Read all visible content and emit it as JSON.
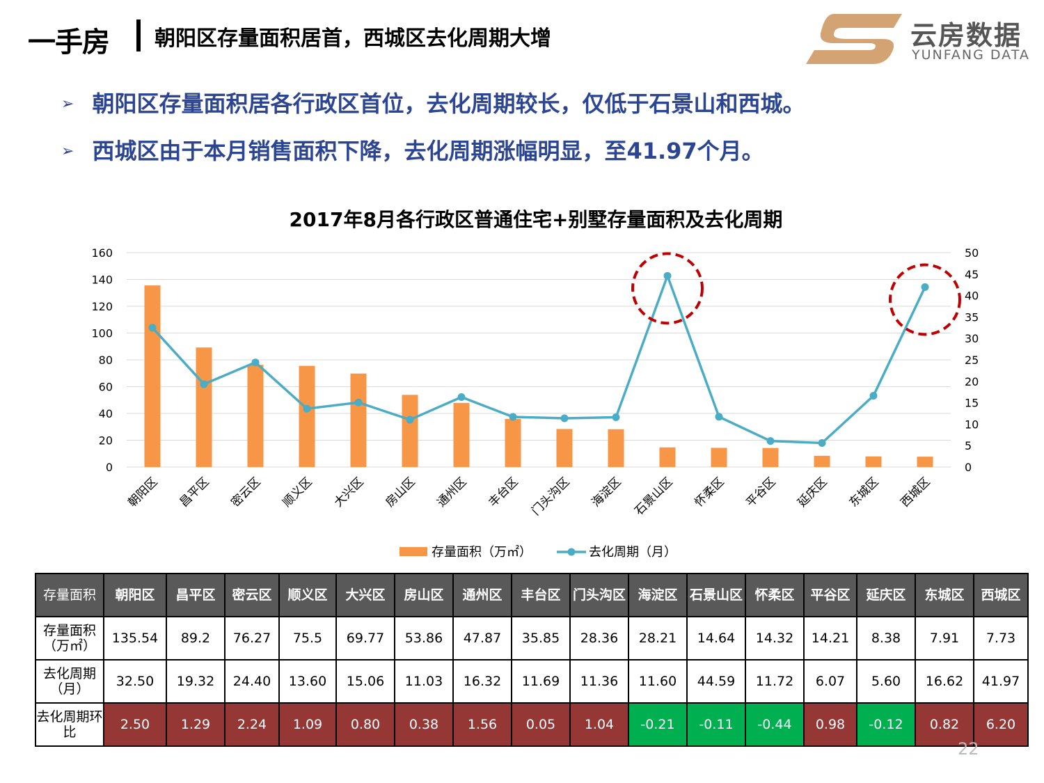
{
  "header": {
    "main": "一手房",
    "sub": "朝阳区存量面积居首，西城区去化周期大增"
  },
  "logo": {
    "cn": "云房数据",
    "en": "YUNFANG DATA",
    "accent": "#d4a373"
  },
  "bullets": [
    "朝阳区存量面积居各行政区首位，去化周期较长，仅低于石景山和西城。",
    "西城区由于本月销售面积下降，去化周期涨幅明显，至41.97个月。"
  ],
  "bullet_symbol": "➢",
  "chart_data": {
    "type": "bar+line",
    "title": "2017年8月各行政区普通住宅+别墅存量面积及去化周期",
    "categories": [
      "朝阳区",
      "昌平区",
      "密云区",
      "顺义区",
      "大兴区",
      "房山区",
      "通州区",
      "丰台区",
      "门头沟区",
      "海淀区",
      "石景山区",
      "怀柔区",
      "平谷区",
      "延庆区",
      "东城区",
      "西城区"
    ],
    "series": [
      {
        "name": "存量面积（万㎡）",
        "type": "bar",
        "axis": "left",
        "color": "#f79646",
        "values": [
          135.54,
          89.2,
          76.27,
          75.5,
          69.77,
          53.86,
          47.87,
          35.85,
          28.36,
          28.21,
          14.64,
          14.32,
          14.21,
          8.38,
          7.91,
          7.73
        ]
      },
      {
        "name": "去化周期（月）",
        "type": "line",
        "axis": "right",
        "color": "#4bacc6",
        "values": [
          32.5,
          19.32,
          24.4,
          13.6,
          15.06,
          11.03,
          16.32,
          11.69,
          11.36,
          11.6,
          44.59,
          11.72,
          6.07,
          5.6,
          16.62,
          41.97
        ]
      }
    ],
    "y_left": {
      "min": 0,
      "max": 160,
      "ticks": [
        "0",
        "20",
        "40",
        "60",
        "80",
        "100",
        "120",
        "140",
        "160"
      ]
    },
    "y_right": {
      "min": 0,
      "max": 50,
      "ticks": [
        "0",
        "5",
        "10",
        "15",
        "20",
        "25",
        "30",
        "35",
        "40",
        "45",
        "50"
      ]
    },
    "grid": true,
    "legend_position": "bottom",
    "highlighted_categories": [
      "石景山区",
      "西城区"
    ],
    "highlight_color": "#c00000"
  },
  "table": {
    "header_label": "存量面积",
    "columns": [
      "朝阳区",
      "昌平区",
      "密云区",
      "顺义区",
      "大兴区",
      "房山区",
      "通州区",
      "丰台区",
      "门头沟区",
      "海淀区",
      "石景山区",
      "怀柔区",
      "平谷区",
      "延庆区",
      "东城区",
      "西城区"
    ],
    "rows": [
      {
        "label": "存量面积（万㎡）",
        "values": [
          "135.54",
          "89.2",
          "76.27",
          "75.5",
          "69.77",
          "53.86",
          "47.87",
          "35.85",
          "28.36",
          "28.21",
          "14.64",
          "14.32",
          "14.21",
          "8.38",
          "7.91",
          "7.73"
        ]
      },
      {
        "label": "去化周期（月）",
        "values": [
          "32.50",
          "19.32",
          "24.40",
          "13.60",
          "15.06",
          "11.03",
          "16.32",
          "11.69",
          "11.36",
          "11.60",
          "44.59",
          "11.72",
          "6.07",
          "5.60",
          "16.62",
          "41.97"
        ]
      },
      {
        "label": "去化周期环比",
        "values": [
          "2.50",
          "1.29",
          "2.24",
          "1.09",
          "0.80",
          "0.38",
          "1.56",
          "0.05",
          "1.04",
          "-0.21",
          "-0.11",
          "-0.44",
          "0.98",
          "-0.12",
          "0.82",
          "6.20"
        ]
      }
    ],
    "positive_color": "#953735",
    "negative_color": "#00b050"
  },
  "page_number": "22"
}
